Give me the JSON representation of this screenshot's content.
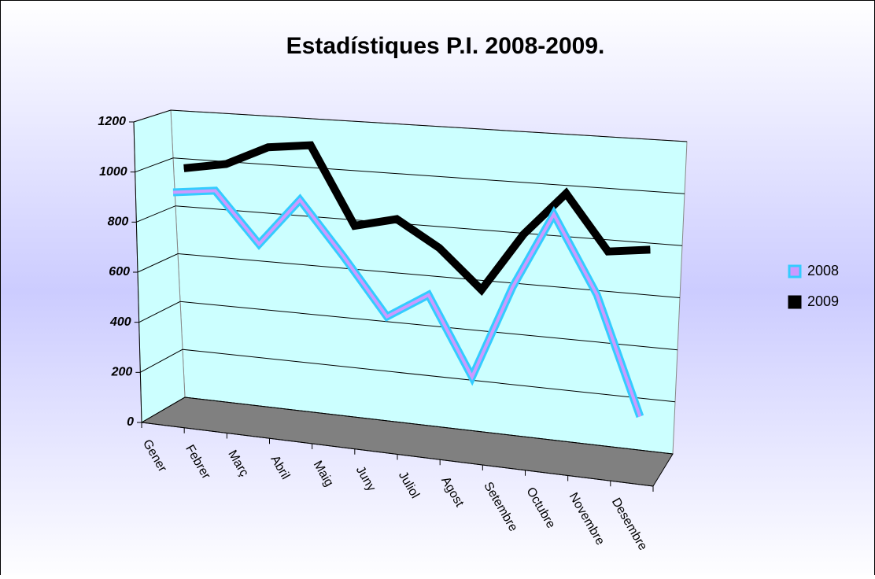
{
  "chart_data": {
    "type": "line3d",
    "title": "Estadístiques P.I. 2008-2009.",
    "categories": [
      "Gener",
      "Febrer",
      "Març",
      "Abril",
      "Maig",
      "Juny",
      "Juliol",
      "Agost",
      "Setembre",
      "Octubre",
      "Novembre",
      "Desembre"
    ],
    "series": [
      {
        "name": "2008",
        "color": "#33ccff",
        "fill_color": "#cc99ff",
        "values": [
          900,
          920,
          720,
          910,
          700,
          480,
          580,
          280,
          640,
          930,
          640,
          200
        ]
      },
      {
        "name": "2009",
        "color": "#000000",
        "fill_color": "#000000",
        "values": [
          980,
          1010,
          1090,
          1110,
          800,
          840,
          740,
          590,
          820,
          990,
          780,
          800
        ]
      }
    ],
    "ylim": [
      0,
      1200
    ],
    "yticks": [
      0,
      200,
      400,
      600,
      800,
      1000,
      1200
    ],
    "grid": true,
    "legend": "right"
  }
}
